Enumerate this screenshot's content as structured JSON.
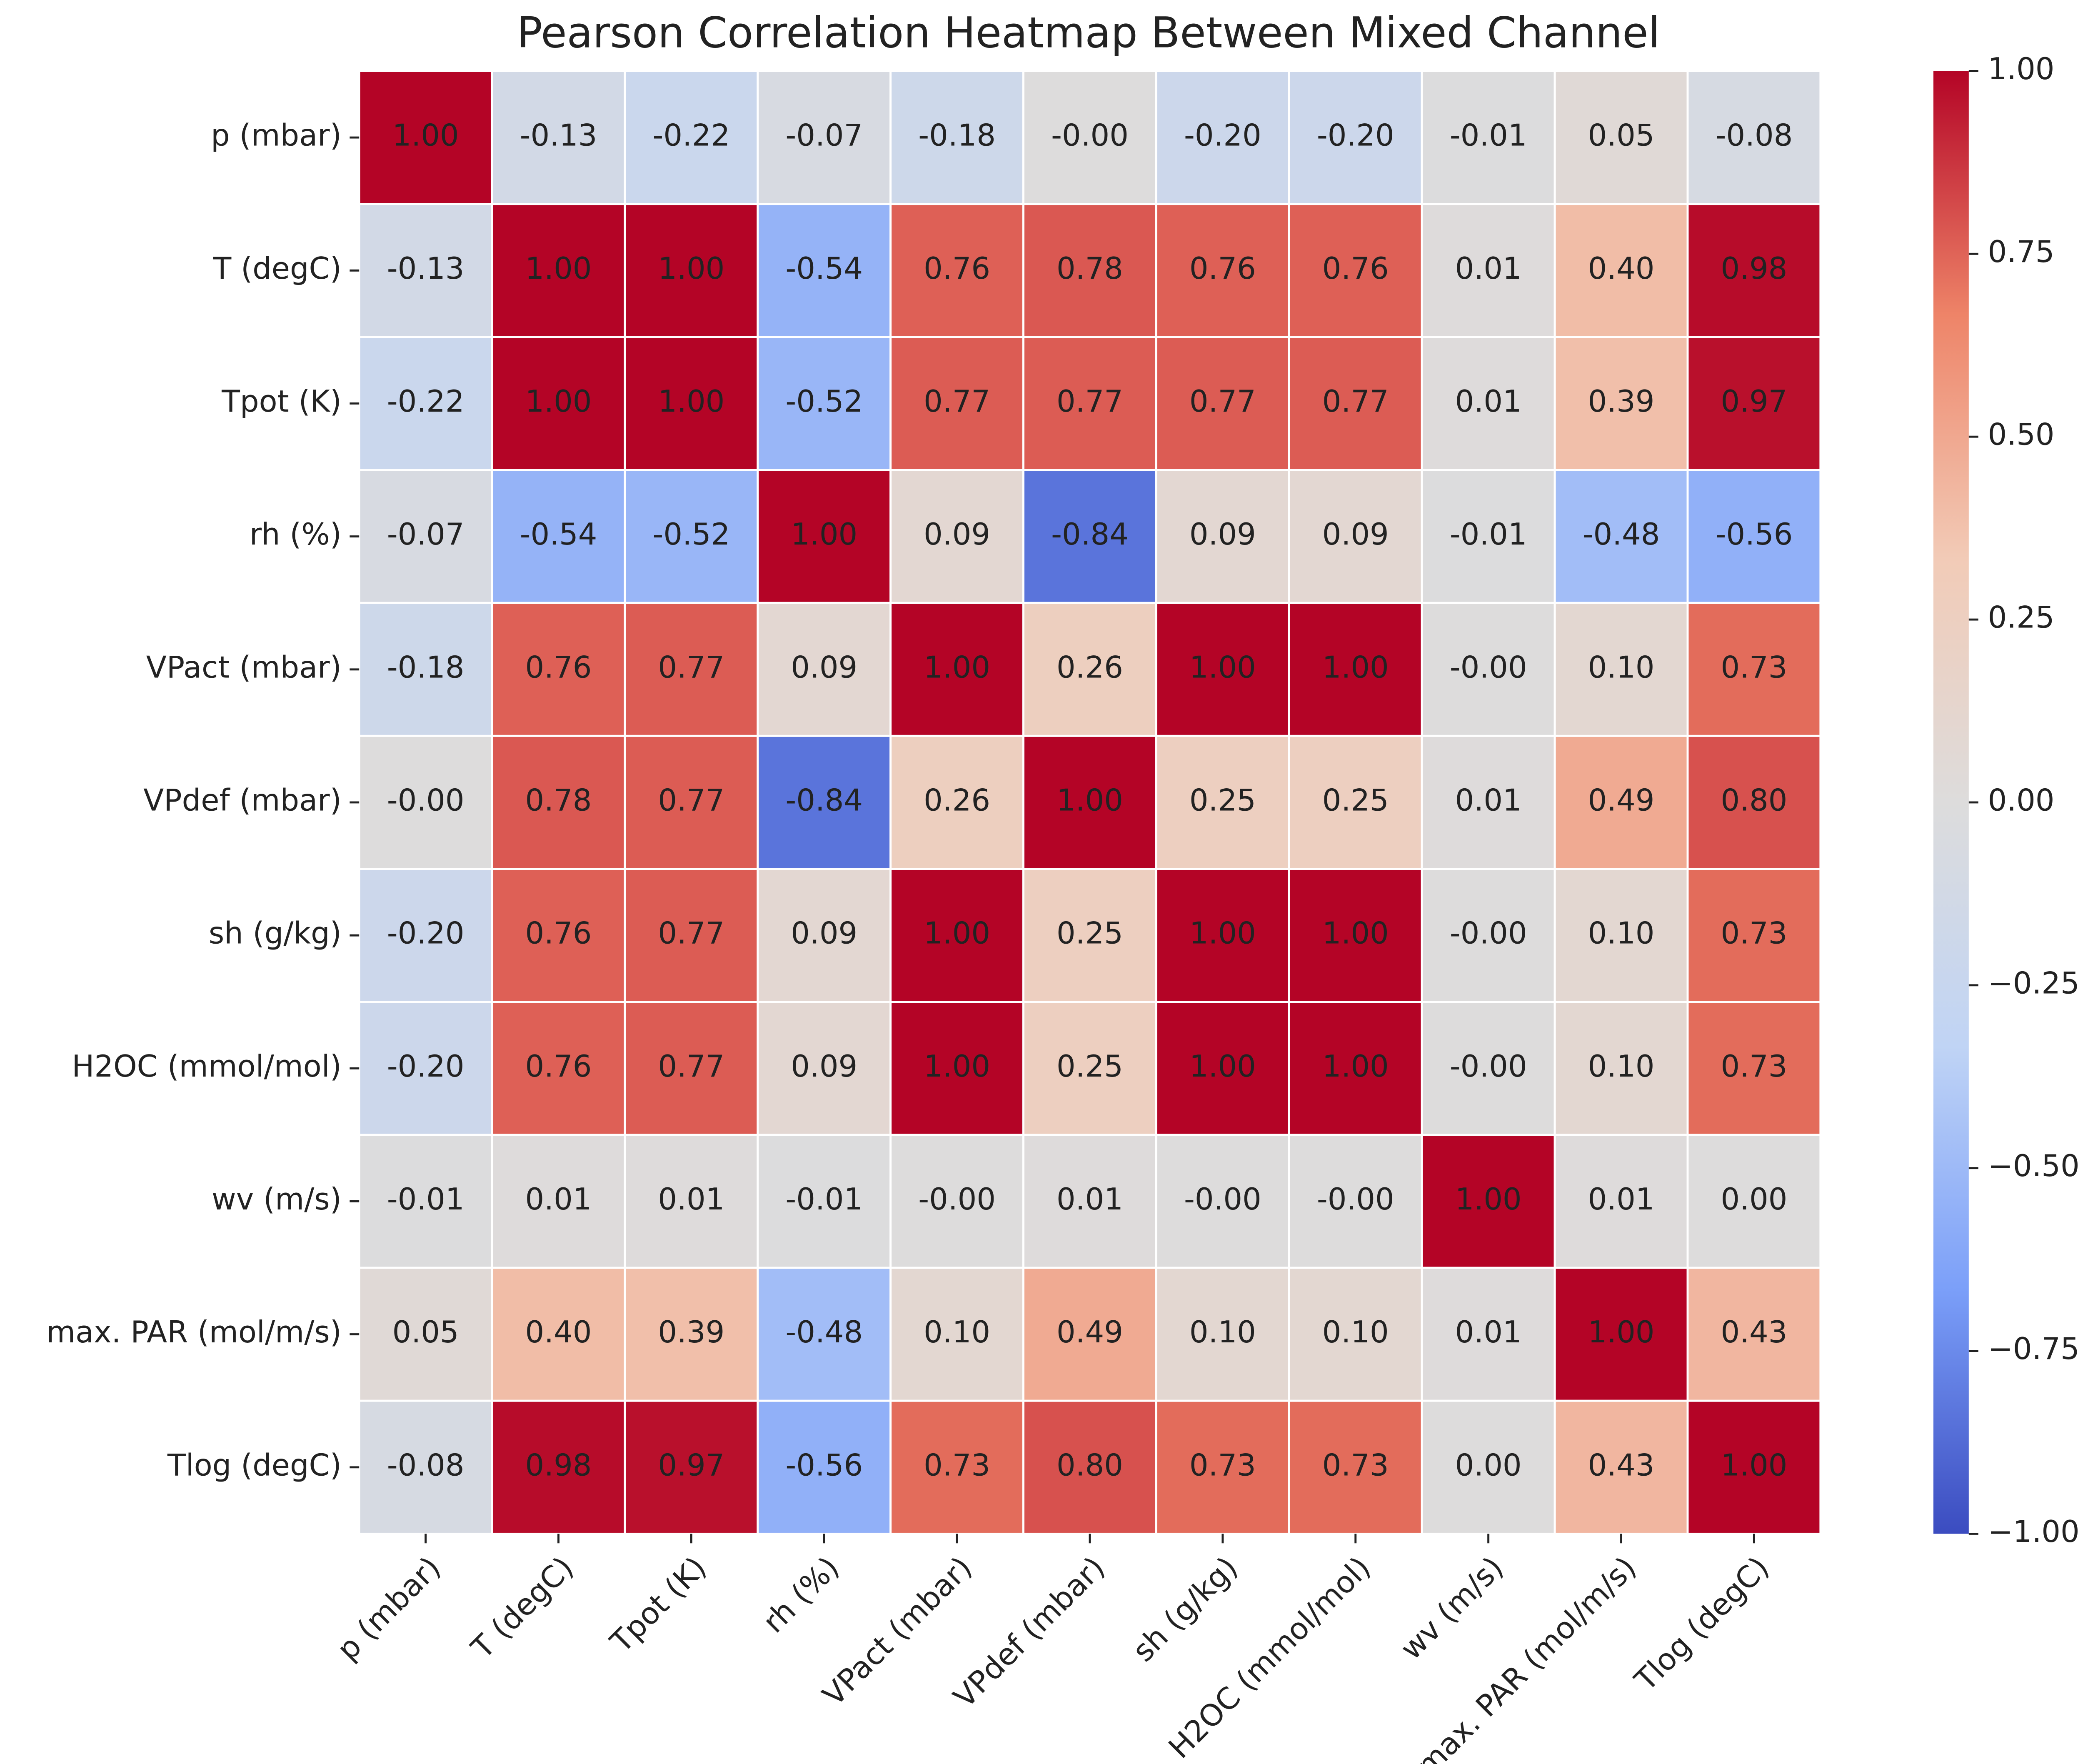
{
  "chart_data": {
    "type": "heatmap",
    "title": "Pearson Correlation Heatmap Between Mixed Channel",
    "categories": [
      "p (mbar)",
      "T (degC)",
      "Tpot (K)",
      "rh (%)",
      "VPact (mbar)",
      "VPdef (mbar)",
      "sh (g/kg)",
      "H2OC (mmol/mol)",
      "wv (m/s)",
      "max. PAR (mol/m/s)",
      "Tlog (degC)"
    ],
    "values": [
      [
        1.0,
        -0.13,
        -0.22,
        -0.07,
        -0.18,
        0,
        -0.2,
        -0.2,
        -0.01,
        0.05,
        -0.08
      ],
      [
        -0.13,
        1.0,
        1.0,
        -0.54,
        0.76,
        0.78,
        0.76,
        0.76,
        0.01,
        0.4,
        0.98
      ],
      [
        -0.22,
        1.0,
        1.0,
        -0.52,
        0.77,
        0.77,
        0.77,
        0.77,
        0.01,
        0.39,
        0.97
      ],
      [
        -0.07,
        -0.54,
        -0.52,
        1.0,
        0.09,
        -0.84,
        0.09,
        0.09,
        -0.01,
        -0.48,
        -0.56
      ],
      [
        -0.18,
        0.76,
        0.77,
        0.09,
        1.0,
        0.26,
        1.0,
        1.0,
        0,
        0.1,
        0.73
      ],
      [
        0,
        0.78,
        0.77,
        -0.84,
        0.26,
        1.0,
        0.25,
        0.25,
        0.01,
        0.49,
        0.8
      ],
      [
        -0.2,
        0.76,
        0.77,
        0.09,
        1.0,
        0.25,
        1.0,
        1.0,
        0,
        0.1,
        0.73
      ],
      [
        -0.2,
        0.76,
        0.77,
        0.09,
        1.0,
        0.25,
        1.0,
        1.0,
        0,
        0.1,
        0.73
      ],
      [
        -0.01,
        0.01,
        0.01,
        -0.01,
        0,
        0.01,
        0,
        0,
        1.0,
        0.01,
        0
      ],
      [
        0.05,
        0.4,
        0.39,
        -0.48,
        0.1,
        0.49,
        0.1,
        0.1,
        0.01,
        1.0,
        0.43
      ],
      [
        -0.08,
        0.98,
        0.97,
        -0.56,
        0.73,
        0.8,
        0.73,
        0.73,
        0,
        0.43,
        1.0
      ]
    ],
    "value_labels": [
      [
        "1.00",
        "-0.13",
        "-0.22",
        "-0.07",
        "-0.18",
        "-0.00",
        "-0.20",
        "-0.20",
        "-0.01",
        "0.05",
        "-0.08"
      ],
      [
        "-0.13",
        "1.00",
        "1.00",
        "-0.54",
        "0.76",
        "0.78",
        "0.76",
        "0.76",
        "0.01",
        "0.40",
        "0.98"
      ],
      [
        "-0.22",
        "1.00",
        "1.00",
        "-0.52",
        "0.77",
        "0.77",
        "0.77",
        "0.77",
        "0.01",
        "0.39",
        "0.97"
      ],
      [
        "-0.07",
        "-0.54",
        "-0.52",
        "1.00",
        "0.09",
        "-0.84",
        "0.09",
        "0.09",
        "-0.01",
        "-0.48",
        "-0.56"
      ],
      [
        "-0.18",
        "0.76",
        "0.77",
        "0.09",
        "1.00",
        "0.26",
        "1.00",
        "1.00",
        "-0.00",
        "0.10",
        "0.73"
      ],
      [
        "-0.00",
        "0.78",
        "0.77",
        "-0.84",
        "0.26",
        "1.00",
        "0.25",
        "0.25",
        "0.01",
        "0.49",
        "0.80"
      ],
      [
        "-0.20",
        "0.76",
        "0.77",
        "0.09",
        "1.00",
        "0.25",
        "1.00",
        "1.00",
        "-0.00",
        "0.10",
        "0.73"
      ],
      [
        "-0.20",
        "0.76",
        "0.77",
        "0.09",
        "1.00",
        "0.25",
        "1.00",
        "1.00",
        "-0.00",
        "0.10",
        "0.73"
      ],
      [
        "-0.01",
        "0.01",
        "0.01",
        "-0.01",
        "-0.00",
        "0.01",
        "-0.00",
        "-0.00",
        "1.00",
        "0.01",
        "0.00"
      ],
      [
        "0.05",
        "0.40",
        "0.39",
        "-0.48",
        "0.10",
        "0.49",
        "0.10",
        "0.10",
        "0.01",
        "1.00",
        "0.43"
      ],
      [
        "-0.08",
        "0.98",
        "0.97",
        "-0.56",
        "0.73",
        "0.80",
        "0.73",
        "0.73",
        "0.00",
        "0.43",
        "1.00"
      ]
    ],
    "colormap": [
      "#3b4cc0",
      "#7b9ff9",
      "#c0d4f5",
      "#dddcdc",
      "#f2cbb7",
      "#ee8468",
      "#b40426"
    ],
    "clim": [
      -1,
      1
    ],
    "cticks": [
      {
        "value": 1,
        "label": "1.00"
      },
      {
        "value": 0.75,
        "label": "0.75"
      },
      {
        "value": 0.5,
        "label": "0.50"
      },
      {
        "value": 0.25,
        "label": "0.25"
      },
      {
        "value": 0,
        "label": "0.00"
      },
      {
        "value": -0.25,
        "label": "−0.25"
      },
      {
        "value": -0.5,
        "label": "−0.50"
      },
      {
        "value": -0.75,
        "label": "−0.75"
      },
      {
        "value": -1,
        "label": "−1.00"
      }
    ]
  }
}
